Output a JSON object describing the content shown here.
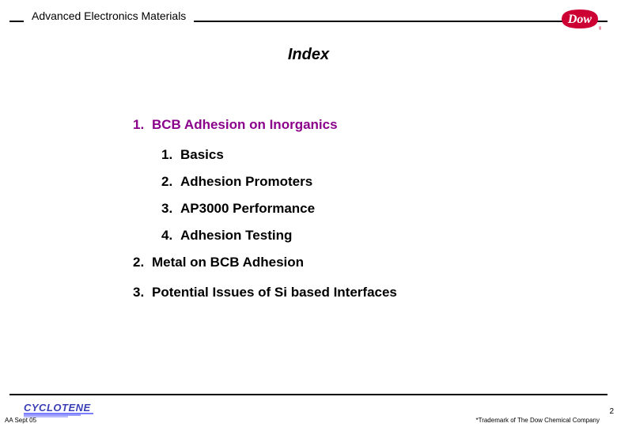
{
  "header": {
    "department": "Advanced Electronics Materials"
  },
  "logo": {
    "dow_bg": "#cc0033",
    "dow_text": "Dow",
    "cyclotene_text": "CYCLOTENE",
    "cyclotene_color": "#3a3fb5"
  },
  "title": "Index",
  "outline": {
    "l1": [
      {
        "num": "1.",
        "text": "BCB Adhesion on Inorganics",
        "class": "purple",
        "sub": [
          {
            "num": "1.",
            "text": "Basics"
          },
          {
            "num": "2.",
            "text": "Adhesion Promoters"
          },
          {
            "num": "3.",
            "text": "AP3000 Performance"
          },
          {
            "num": "4.",
            "text": "Adhesion Testing"
          }
        ]
      },
      {
        "num": "2.",
        "text": "Metal on BCB Adhesion",
        "class": "",
        "sub": []
      },
      {
        "num": "3.",
        "text": "Potential Issues of Si based Interfaces",
        "class": "",
        "sub": []
      }
    ]
  },
  "footer": {
    "left": "AA Sept 05",
    "right": "*Trademark of The Dow Chemical Company",
    "page": "2"
  }
}
